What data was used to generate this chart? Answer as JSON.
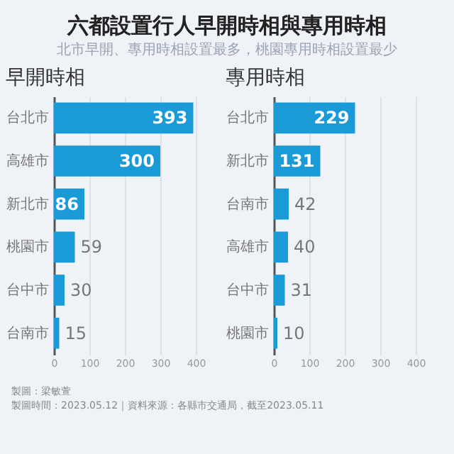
{
  "chart_data": [
    {
      "type": "bar",
      "orientation": "horizontal",
      "title": "早開時相",
      "categories": [
        "台北市",
        "高雄市",
        "新北市",
        "桃園市",
        "台中市",
        "台南市"
      ],
      "values": [
        393,
        300,
        86,
        59,
        30,
        15
      ],
      "color": "#1a9ad6",
      "xlim": [
        0,
        400
      ],
      "xticks": [
        0,
        100,
        200,
        300,
        400
      ],
      "grid": "x",
      "data_labels": true,
      "annotations": [
        "六都設置行人早開時相與專用時相",
        "北市早開、專用時相設置最多，桃園專用時相設置最少",
        "製圖：梁敏萱",
        "製圖時間：2023.05.12｜資料來源：各縣市交通局，截至2023.05.11"
      ]
    },
    {
      "type": "bar",
      "orientation": "horizontal",
      "title": "專用時相",
      "categories": [
        "台北市",
        "新北市",
        "台南市",
        "高雄市",
        "台中市",
        "桃園市"
      ],
      "values": [
        229,
        131,
        42,
        40,
        31,
        10
      ],
      "color": "#1a9ad6",
      "xlim": [
        0,
        400
      ],
      "xticks": [
        0,
        100,
        200,
        300,
        400
      ],
      "grid": "x",
      "data_labels": true
    }
  ]
}
